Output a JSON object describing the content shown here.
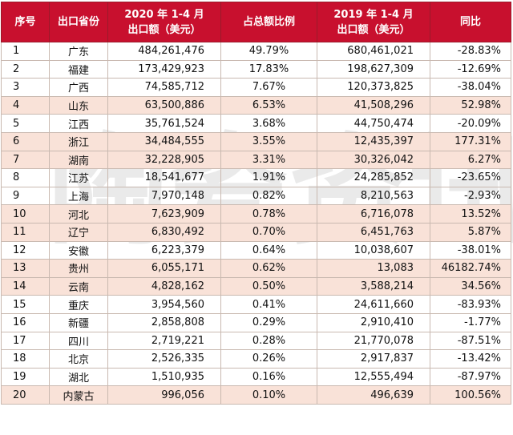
{
  "headers": {
    "seq": "序号",
    "province": "出口省份",
    "export2020_line1": "2020 年 1-4 月",
    "export2020_line2": "出口额（美元）",
    "share": "占总额比例",
    "export2019_line1": "2019 年 1-4 月",
    "export2019_line2": "出口额（美元）",
    "yoy": "同比"
  },
  "rows": [
    {
      "seq": "1",
      "province": "广东",
      "v2020": "484,261,476",
      "share": "49.79%",
      "v2019": "680,461,021",
      "yoy": "-28.83%",
      "highlight": false
    },
    {
      "seq": "2",
      "province": "福建",
      "v2020": "173,429,923",
      "share": "17.83%",
      "v2019": "198,627,309",
      "yoy": "-12.69%",
      "highlight": false
    },
    {
      "seq": "3",
      "province": "广西",
      "v2020": "74,585,712",
      "share": "7.67%",
      "v2019": "120,373,825",
      "yoy": "-38.04%",
      "highlight": false
    },
    {
      "seq": "4",
      "province": "山东",
      "v2020": "63,500,886",
      "share": "6.53%",
      "v2019": "41,508,296",
      "yoy": "52.98%",
      "highlight": true
    },
    {
      "seq": "5",
      "province": "江西",
      "v2020": "35,761,524",
      "share": "3.68%",
      "v2019": "44,750,474",
      "yoy": "-20.09%",
      "highlight": false
    },
    {
      "seq": "6",
      "province": "浙江",
      "v2020": "34,484,555",
      "share": "3.55%",
      "v2019": "12,435,397",
      "yoy": "177.31%",
      "highlight": true
    },
    {
      "seq": "7",
      "province": "湖南",
      "v2020": "32,228,905",
      "share": "3.31%",
      "v2019": "30,326,042",
      "yoy": "6.27%",
      "highlight": true
    },
    {
      "seq": "8",
      "province": "江苏",
      "v2020": "18,541,677",
      "share": "1.91%",
      "v2019": "24,285,852",
      "yoy": "-23.65%",
      "highlight": false
    },
    {
      "seq": "9",
      "province": "上海",
      "v2020": "7,970,148",
      "share": "0.82%",
      "v2019": "8,210,563",
      "yoy": "-2.93%",
      "highlight": false
    },
    {
      "seq": "10",
      "province": "河北",
      "v2020": "7,623,909",
      "share": "0.78%",
      "v2019": "6,716,078",
      "yoy": "13.52%",
      "highlight": true
    },
    {
      "seq": "11",
      "province": "辽宁",
      "v2020": "6,830,492",
      "share": "0.70%",
      "v2019": "6,451,763",
      "yoy": "5.87%",
      "highlight": true
    },
    {
      "seq": "12",
      "province": "安徽",
      "v2020": "6,223,379",
      "share": "0.64%",
      "v2019": "10,038,607",
      "yoy": "-38.01%",
      "highlight": false
    },
    {
      "seq": "13",
      "province": "贵州",
      "v2020": "6,055,171",
      "share": "0.62%",
      "v2019": "13,083",
      "yoy": "46182.74%",
      "highlight": true
    },
    {
      "seq": "14",
      "province": "云南",
      "v2020": "4,828,162",
      "share": "0.50%",
      "v2019": "3,588,214",
      "yoy": "34.56%",
      "highlight": true
    },
    {
      "seq": "15",
      "province": "重庆",
      "v2020": "3,954,560",
      "share": "0.41%",
      "v2019": "24,611,660",
      "yoy": "-83.93%",
      "highlight": false
    },
    {
      "seq": "16",
      "province": "新疆",
      "v2020": "2,858,808",
      "share": "0.29%",
      "v2019": "2,910,410",
      "yoy": "-1.77%",
      "highlight": false
    },
    {
      "seq": "17",
      "province": "四川",
      "v2020": "2,719,221",
      "share": "0.28%",
      "v2019": "21,770,078",
      "yoy": "-87.51%",
      "highlight": false
    },
    {
      "seq": "18",
      "province": "北京",
      "v2020": "2,526,335",
      "share": "0.26%",
      "v2019": "2,917,837",
      "yoy": "-13.42%",
      "highlight": false
    },
    {
      "seq": "19",
      "province": "湖北",
      "v2020": "1,510,935",
      "share": "0.16%",
      "v2019": "12,555,494",
      "yoy": "-87.97%",
      "highlight": false
    },
    {
      "seq": "20",
      "province": "内蒙古",
      "v2020": "996,056",
      "share": "0.10%",
      "v2019": "496,639",
      "yoy": "100.56%",
      "highlight": true
    }
  ],
  "colors": {
    "header_bg": "#c8102e",
    "header_text": "#ffffff",
    "highlight_row": "#f9e2d8"
  },
  "watermark_text": "陶瓷资讯"
}
